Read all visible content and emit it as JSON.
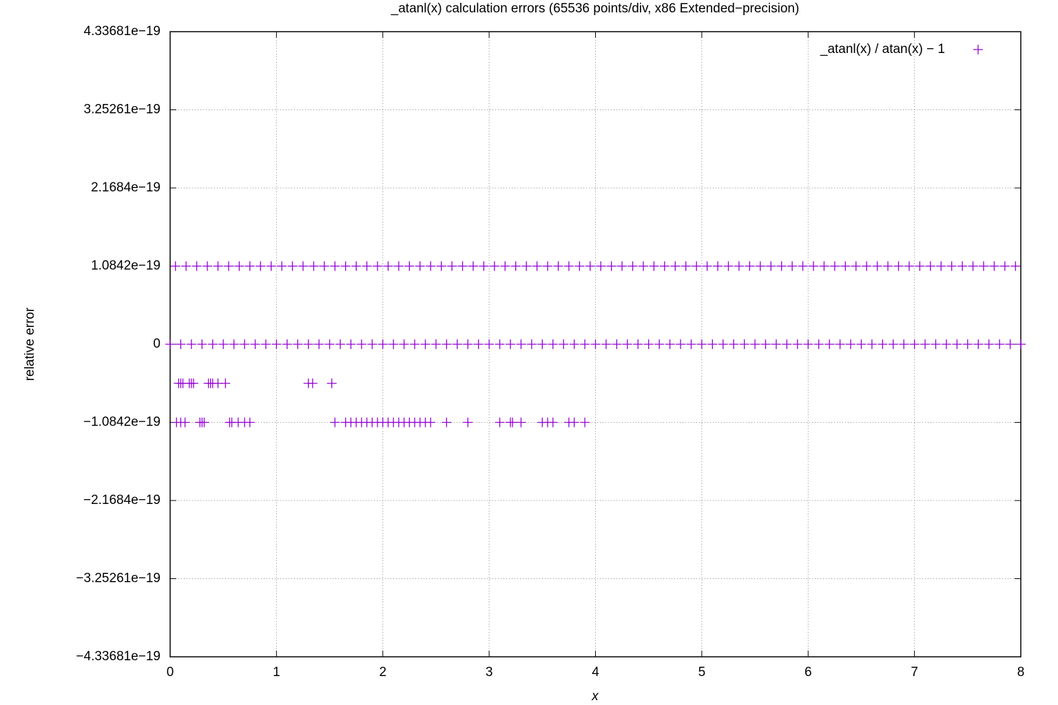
{
  "chart_data": {
    "type": "scatter",
    "title": "_atanl(x) calculation errors (65536 points/div, x86 Extended−precision)",
    "x_label": "x",
    "y_label": "relative error",
    "xlim": [
      0,
      8
    ],
    "xticks": [
      0,
      1,
      2,
      3,
      4,
      5,
      6,
      7,
      8
    ],
    "ylim": [
      -4.33681e-19,
      4.33681e-19
    ],
    "yticks": [
      {
        "value": 4.33681e-19,
        "label": "4.33681e−19"
      },
      {
        "value": 3.25261e-19,
        "label": "3.25261e−19"
      },
      {
        "value": 2.1684e-19,
        "label": "2.1684e−19"
      },
      {
        "value": 1.0842e-19,
        "label": "1.0842e−19"
      },
      0,
      {
        "value": -1.0842e-19,
        "label": "−1.0842e−19"
      },
      {
        "value": -2.1684e-19,
        "label": "−2.1684e−19"
      },
      {
        "value": -3.25261e-19,
        "label": "−3.25261e−19"
      },
      {
        "value": -4.33681e-19,
        "label": "−4.33681e−19"
      }
    ],
    "grid": true,
    "legend_position": "top-right",
    "series": [
      {
        "name": "_atanl(x) / atan(x) − 1",
        "color": "#9400d3",
        "x": [
          0.05,
          0.15,
          0.25,
          0.35,
          0.45,
          0.55,
          0.65,
          0.75,
          0.85,
          0.95,
          1.05,
          1.15,
          1.25,
          1.35,
          1.45,
          1.55,
          1.65,
          1.75,
          1.85,
          1.95,
          2.05,
          2.15,
          2.25,
          2.35,
          2.45,
          2.55,
          2.65,
          2.75,
          2.85,
          2.95,
          3.05,
          3.15,
          3.25,
          3.35,
          3.45,
          3.55,
          3.65,
          3.75,
          3.85,
          3.95,
          4.05,
          4.15,
          4.25,
          4.35,
          4.45,
          4.55,
          4.65,
          4.75,
          4.85,
          4.95,
          5.05,
          5.15,
          5.25,
          5.35,
          5.45,
          5.55,
          5.65,
          5.75,
          5.85,
          5.95,
          6.05,
          6.15,
          6.25,
          6.35,
          6.45,
          6.55,
          6.65,
          6.75,
          6.85,
          6.95,
          7.05,
          7.15,
          7.25,
          7.35,
          7.45,
          7.55,
          7.65,
          7.75,
          7.85,
          7.95,
          0,
          0.1,
          0.2,
          0.3,
          0.4,
          0.5,
          0.6,
          0.7,
          0.8,
          0.9,
          1,
          1.1,
          1.2,
          1.3,
          1.4,
          1.5,
          1.6,
          1.7,
          1.8,
          1.9,
          2,
          2.1,
          2.2,
          2.3,
          2.4,
          2.5,
          2.6,
          2.7,
          2.8,
          2.9,
          3,
          3.1,
          3.2,
          3.3,
          3.4,
          3.5,
          3.6,
          3.7,
          3.8,
          3.9,
          4,
          4.1,
          4.2,
          4.3,
          4.4,
          4.5,
          4.6,
          4.7,
          4.8,
          4.9,
          5,
          5.1,
          5.2,
          5.3,
          5.4,
          5.5,
          5.6,
          5.7,
          5.8,
          5.9,
          6,
          6.1,
          6.2,
          6.3,
          6.4,
          6.5,
          6.6,
          6.7,
          6.8,
          6.9,
          7,
          7.1,
          7.2,
          7.3,
          7.4,
          7.5,
          7.6,
          7.7,
          7.8,
          7.9,
          8,
          0.08,
          0.1,
          0.12,
          0.18,
          0.2,
          0.22,
          0.36,
          0.38,
          0.4,
          0.45,
          0.52,
          1.3,
          1.34,
          1.52,
          0.06,
          0.1,
          0.14,
          0.28,
          0.3,
          0.32,
          0.56,
          0.58,
          0.64,
          0.7,
          0.75,
          1.55,
          1.65,
          1.7,
          1.75,
          1.8,
          1.85,
          1.9,
          1.95,
          2.0,
          2.05,
          2.1,
          2.15,
          2.2,
          2.25,
          2.3,
          2.35,
          2.4,
          2.45,
          2.6,
          2.8,
          3.1,
          3.2,
          3.22,
          3.3,
          3.5,
          3.55,
          3.6,
          3.75,
          3.8,
          3.9
        ],
        "values": [
          1.0842e-19,
          1.0842e-19,
          1.0842e-19,
          1.0842e-19,
          1.0842e-19,
          1.0842e-19,
          1.0842e-19,
          1.0842e-19,
          1.0842e-19,
          1.0842e-19,
          1.0842e-19,
          1.0842e-19,
          1.0842e-19,
          1.0842e-19,
          1.0842e-19,
          1.0842e-19,
          1.0842e-19,
          1.0842e-19,
          1.0842e-19,
          1.0842e-19,
          1.0842e-19,
          1.0842e-19,
          1.0842e-19,
          1.0842e-19,
          1.0842e-19,
          1.0842e-19,
          1.0842e-19,
          1.0842e-19,
          1.0842e-19,
          1.0842e-19,
          1.0842e-19,
          1.0842e-19,
          1.0842e-19,
          1.0842e-19,
          1.0842e-19,
          1.0842e-19,
          1.0842e-19,
          1.0842e-19,
          1.0842e-19,
          1.0842e-19,
          1.0842e-19,
          1.0842e-19,
          1.0842e-19,
          1.0842e-19,
          1.0842e-19,
          1.0842e-19,
          1.0842e-19,
          1.0842e-19,
          1.0842e-19,
          1.0842e-19,
          1.0842e-19,
          1.0842e-19,
          1.0842e-19,
          1.0842e-19,
          1.0842e-19,
          1.0842e-19,
          1.0842e-19,
          1.0842e-19,
          1.0842e-19,
          1.0842e-19,
          1.0842e-19,
          1.0842e-19,
          1.0842e-19,
          1.0842e-19,
          1.0842e-19,
          1.0842e-19,
          1.0842e-19,
          1.0842e-19,
          1.0842e-19,
          1.0842e-19,
          1.0842e-19,
          1.0842e-19,
          1.0842e-19,
          1.0842e-19,
          1.0842e-19,
          1.0842e-19,
          1.0842e-19,
          1.0842e-19,
          1.0842e-19,
          1.0842e-19,
          0,
          0,
          0,
          0,
          0,
          0,
          0,
          0,
          0,
          0,
          0,
          0,
          0,
          0,
          0,
          0,
          0,
          0,
          0,
          0,
          0,
          0,
          0,
          0,
          0,
          0,
          0,
          0,
          0,
          0,
          0,
          0,
          0,
          0,
          0,
          0,
          0,
          0,
          0,
          0,
          0,
          0,
          0,
          0,
          0,
          0,
          0,
          0,
          0,
          0,
          0,
          0,
          0,
          0,
          0,
          0,
          0,
          0,
          0,
          0,
          0,
          0,
          0,
          0,
          0,
          0,
          0,
          0,
          0,
          0,
          0,
          0,
          0,
          0,
          0,
          0,
          0,
          0,
          0,
          0,
          0,
          -5.421e-20,
          -5.421e-20,
          -5.421e-20,
          -5.421e-20,
          -5.421e-20,
          -5.421e-20,
          -5.421e-20,
          -5.421e-20,
          -5.421e-20,
          -5.421e-20,
          -5.421e-20,
          -5.421e-20,
          -5.421e-20,
          -5.421e-20,
          -1.0842e-19,
          -1.0842e-19,
          -1.0842e-19,
          -1.0842e-19,
          -1.0842e-19,
          -1.0842e-19,
          -1.0842e-19,
          -1.0842e-19,
          -1.0842e-19,
          -1.0842e-19,
          -1.0842e-19,
          -1.0842e-19,
          -1.0842e-19,
          -1.0842e-19,
          -1.0842e-19,
          -1.0842e-19,
          -1.0842e-19,
          -1.0842e-19,
          -1.0842e-19,
          -1.0842e-19,
          -1.0842e-19,
          -1.0842e-19,
          -1.0842e-19,
          -1.0842e-19,
          -1.0842e-19,
          -1.0842e-19,
          -1.0842e-19,
          -1.0842e-19,
          -1.0842e-19,
          -1.0842e-19,
          -1.0842e-19,
          -1.0842e-19,
          -1.0842e-19,
          -1.0842e-19,
          -1.0842e-19,
          -1.0842e-19,
          -1.0842e-19,
          -1.0842e-19,
          -1.0842e-19,
          -1.0842e-19,
          -1.0842e-19
        ]
      }
    ]
  }
}
